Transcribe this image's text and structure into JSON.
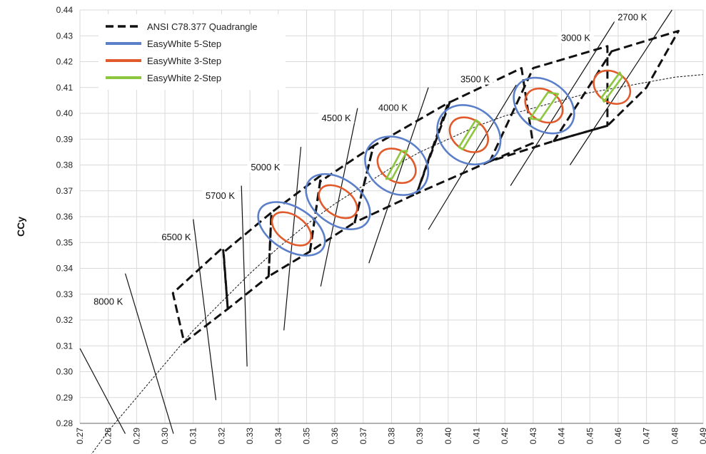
{
  "chart_data": {
    "type": "scatter",
    "title": "",
    "xlabel": "",
    "ylabel": "CCy",
    "xlim": [
      0.27,
      0.49
    ],
    "ylim": [
      0.28,
      0.44
    ],
    "grid": true,
    "x_ticks": [
      "0.27",
      "0.28",
      "0.29",
      "0.30",
      "0.31",
      "0.32",
      "0.33",
      "0.34",
      "0.35",
      "0.36",
      "0.37",
      "0.38",
      "0.39",
      "0.40",
      "0.41",
      "0.42",
      "0.43",
      "0.44",
      "0.45",
      "0.46",
      "0.47",
      "0.48",
      "0.49"
    ],
    "y_ticks": [
      "0.28",
      "0.29",
      "0.30",
      "0.31",
      "0.32",
      "0.33",
      "0.34",
      "0.35",
      "0.36",
      "0.37",
      "0.38",
      "0.39",
      "0.40",
      "0.41",
      "0.42",
      "0.43",
      "0.44"
    ],
    "legend": {
      "position": "top-left",
      "entries": [
        {
          "name": "ANSI C78.377 Quadrangle",
          "style": "dashed",
          "color": "#111111"
        },
        {
          "name": "EasyWhite 5-Step",
          "style": "ellipse",
          "color": "#5b7fc9"
        },
        {
          "name": "EasyWhite 3-Step",
          "style": "ellipse",
          "color": "#e05a2b"
        },
        {
          "name": "EasyWhite 2-Step",
          "style": "diamond",
          "color": "#8dc63f"
        }
      ]
    },
    "planckian_locus": [
      [
        0.27,
        0.262
      ],
      [
        0.28,
        0.277
      ],
      [
        0.29,
        0.29
      ],
      [
        0.3,
        0.303
      ],
      [
        0.31,
        0.316
      ],
      [
        0.32,
        0.327
      ],
      [
        0.33,
        0.338
      ],
      [
        0.34,
        0.348
      ],
      [
        0.35,
        0.357
      ],
      [
        0.36,
        0.365
      ],
      [
        0.37,
        0.372
      ],
      [
        0.38,
        0.379
      ],
      [
        0.39,
        0.385
      ],
      [
        0.4,
        0.39
      ],
      [
        0.41,
        0.395
      ],
      [
        0.42,
        0.399
      ],
      [
        0.43,
        0.402
      ],
      [
        0.44,
        0.405
      ],
      [
        0.45,
        0.408
      ],
      [
        0.46,
        0.41
      ],
      [
        0.47,
        0.412
      ],
      [
        0.48,
        0.414
      ],
      [
        0.49,
        0.415
      ]
    ],
    "isotemperature_lines": [
      {
        "label": "2700 K",
        "x1": 0.443,
        "y1": 0.38,
        "x2": 0.479,
        "y2": 0.44,
        "label_x": 0.465,
        "label_y": 0.4365
      },
      {
        "label": "3000 K",
        "x1": 0.422,
        "y1": 0.372,
        "x2": 0.459,
        "y2": 0.436,
        "label_x": 0.445,
        "label_y": 0.4285
      },
      {
        "label": "3500 K",
        "x1": 0.393,
        "y1": 0.355,
        "x2": 0.424,
        "y2": 0.411,
        "label_x": 0.4095,
        "label_y": 0.4125
      },
      {
        "label": "4000 K",
        "x1": 0.372,
        "y1": 0.342,
        "x2": 0.393,
        "y2": 0.41,
        "label_x": 0.3805,
        "label_y": 0.4015
      },
      {
        "label": "4500 K",
        "x1": 0.355,
        "y1": 0.333,
        "x2": 0.368,
        "y2": 0.402,
        "label_x": 0.3605,
        "label_y": 0.3975
      },
      {
        "label": "5000 K",
        "x1": 0.342,
        "y1": 0.316,
        "x2": 0.348,
        "y2": 0.387,
        "label_x": 0.3355,
        "label_y": 0.3785
      },
      {
        "label": "5700 K",
        "x1": 0.329,
        "y1": 0.302,
        "x2": 0.327,
        "y2": 0.372,
        "label_x": 0.3195,
        "label_y": 0.3675
      },
      {
        "label": "6500 K",
        "x1": 0.318,
        "y1": 0.289,
        "x2": 0.31,
        "y2": 0.359,
        "label_x": 0.304,
        "label_y": 0.3515
      },
      {
        "label": "8000 K",
        "x1": 0.303,
        "y1": 0.276,
        "x2": 0.286,
        "y2": 0.338,
        "label_x": 0.28,
        "label_y": 0.3265
      },
      {
        "label": "",
        "x1": 0.286,
        "y1": 0.276,
        "x2": 0.27,
        "y2": 0.309,
        "label_x": null,
        "label_y": null
      }
    ],
    "quadrangles": [
      {
        "cct": "2700 K",
        "points": [
          [
            0.4577,
            0.424
          ],
          [
            0.4813,
            0.4319
          ],
          [
            0.47,
            0.41
          ],
          [
            0.4562,
            0.3952
          ],
          [
            0.4373,
            0.3893
          ]
        ]
      },
      {
        "cct": "3000 K",
        "points": [
          [
            0.4373,
            0.3893
          ],
          [
            0.4562,
            0.3952
          ],
          [
            0.4562,
            0.426
          ],
          [
            0.43,
            0.4175
          ],
          [
            0.4147,
            0.3814
          ]
        ]
      },
      {
        "cct": "3500 K",
        "points": [
          [
            0.4147,
            0.3814
          ],
          [
            0.4299,
            0.3885
          ],
          [
            0.4259,
            0.4175
          ],
          [
            0.4,
            0.404
          ],
          [
            0.3889,
            0.369
          ]
        ]
      },
      {
        "cct": "4000 K",
        "points": [
          [
            0.3889,
            0.369
          ],
          [
            0.4006,
            0.4044
          ],
          [
            0.3736,
            0.3874
          ],
          [
            0.367,
            0.3578
          ]
        ]
      },
      {
        "cct": "4500 K",
        "points": [
          [
            0.367,
            0.3578
          ],
          [
            0.3736,
            0.3874
          ],
          [
            0.3548,
            0.3736
          ],
          [
            0.3512,
            0.3465
          ]
        ]
      },
      {
        "cct": "5000 K",
        "points": [
          [
            0.3512,
            0.3465
          ],
          [
            0.3551,
            0.376
          ],
          [
            0.3376,
            0.3616
          ],
          [
            0.3366,
            0.3369
          ]
        ]
      },
      {
        "cct": "5700 K",
        "points": [
          [
            0.3366,
            0.3369
          ],
          [
            0.3376,
            0.3616
          ],
          [
            0.3207,
            0.3462
          ],
          [
            0.3222,
            0.3243
          ]
        ]
      },
      {
        "cct": "6500 K",
        "points": [
          [
            0.3222,
            0.3243
          ],
          [
            0.3205,
            0.3481
          ],
          [
            0.3028,
            0.3304
          ],
          [
            0.3068,
            0.3113
          ]
        ]
      }
    ],
    "easywhite_5_step": [
      {
        "cct": "5000 K",
        "x": 0.3447,
        "y": 0.3553,
        "rx": 0.0076,
        "ry": 0.0143,
        "angle": -58
      },
      {
        "cct": "4500 K",
        "x": 0.3611,
        "y": 0.3658,
        "rx": 0.008,
        "ry": 0.0138,
        "angle": -55
      },
      {
        "cct": "4000 K",
        "x": 0.3818,
        "y": 0.3797,
        "rx": 0.0095,
        "ry": 0.013,
        "angle": -55
      },
      {
        "cct": "3500 K",
        "x": 0.4073,
        "y": 0.3917,
        "rx": 0.0097,
        "ry": 0.013,
        "angle": -54
      },
      {
        "cct": "3000 K",
        "x": 0.4338,
        "y": 0.403,
        "rx": 0.0086,
        "ry": 0.0128,
        "angle": -53
      }
    ],
    "easywhite_3_step": [
      {
        "cct": "5000 K",
        "x": 0.3447,
        "y": 0.3553,
        "rx": 0.0047,
        "ry": 0.0085
      },
      {
        "cct": "4500 K",
        "x": 0.3611,
        "y": 0.3658,
        "rx": 0.0048,
        "ry": 0.0082
      },
      {
        "cct": "4000 K",
        "x": 0.3818,
        "y": 0.3797,
        "rx": 0.0054,
        "ry": 0.008
      },
      {
        "cct": "3500 K",
        "x": 0.4073,
        "y": 0.3917,
        "rx": 0.0055,
        "ry": 0.008
      },
      {
        "cct": "3000 K",
        "x": 0.4338,
        "y": 0.403,
        "rx": 0.0054,
        "ry": 0.0078
      },
      {
        "cct": "2700 K",
        "x": 0.4578,
        "y": 0.4101,
        "rx": 0.0053,
        "ry": 0.0076
      }
    ],
    "easywhite_2_step": [
      {
        "cct": "4000 K",
        "points": [
          [
            0.3781,
            0.3746
          ],
          [
            0.3834,
            0.3853
          ],
          [
            0.3855,
            0.3855
          ],
          [
            0.3802,
            0.3748
          ]
        ]
      },
      {
        "cct": "3500 K",
        "points": [
          [
            0.4038,
            0.3869
          ],
          [
            0.4097,
            0.3974
          ],
          [
            0.411,
            0.3965
          ],
          [
            0.4051,
            0.386
          ]
        ]
      },
      {
        "cct": "3000 K",
        "points": [
          [
            0.4289,
            0.398
          ],
          [
            0.4352,
            0.4081
          ],
          [
            0.4388,
            0.4075
          ],
          [
            0.4325,
            0.3975
          ]
        ]
      },
      {
        "cct": "2700 K",
        "points": [
          [
            0.4542,
            0.4062
          ],
          [
            0.4606,
            0.4158
          ],
          [
            0.4614,
            0.414
          ],
          [
            0.455,
            0.4045
          ]
        ]
      }
    ]
  }
}
